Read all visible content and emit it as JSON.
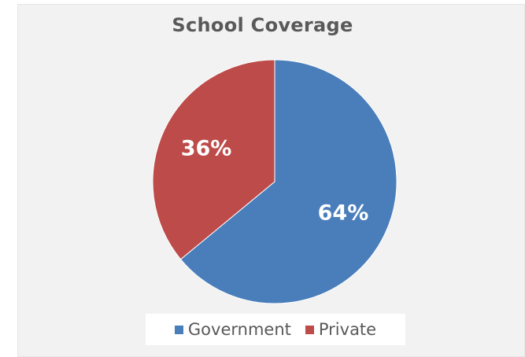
{
  "chart_data": {
    "type": "pie",
    "title": "School Coverage",
    "categories": [
      "Government",
      "Private"
    ],
    "values": [
      64,
      36
    ],
    "labels": [
      "64%",
      "36%"
    ],
    "colors": [
      "#4a7ebb",
      "#bd4b4a"
    ],
    "legend_position": "bottom"
  }
}
